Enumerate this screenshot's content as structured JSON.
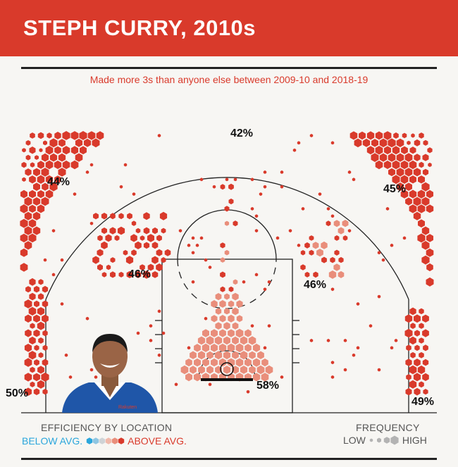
{
  "header": {
    "title": "STEPH CURRY, 2010s",
    "subtitle": "Made more 3s than anyone else between 2009-10 and 2018-19"
  },
  "colors": {
    "header_bg": "#d93a2b",
    "above_avg_dark": "#d93a2b",
    "above_avg_light": "#e98e7b",
    "below_avg": "#2aa6dc",
    "neutral": "#cfd3d6"
  },
  "chart_data": {
    "type": "heatmap",
    "description_kind": "shot chart",
    "zones": [
      {
        "zone": "left-corner-3",
        "efficiency": "50%"
      },
      {
        "zone": "left-wing-3",
        "efficiency": "44%"
      },
      {
        "zone": "top-of-key-3",
        "efficiency": "42%"
      },
      {
        "zone": "right-wing-3",
        "efficiency": "45%"
      },
      {
        "zone": "right-corner-3",
        "efficiency": "49%"
      },
      {
        "zone": "left-midrange",
        "efficiency": "46%"
      },
      {
        "zone": "right-midrange",
        "efficiency": "46%"
      },
      {
        "zone": "restricted-area",
        "efficiency": "58%"
      }
    ]
  },
  "legend": {
    "efficiency_title": "EFFICIENCY BY LOCATION",
    "below_label": "BELOW AVG.",
    "above_label": "ABOVE AVG.",
    "frequency_title": "FREQUENCY",
    "low_label": "LOW",
    "high_label": "HIGH"
  }
}
